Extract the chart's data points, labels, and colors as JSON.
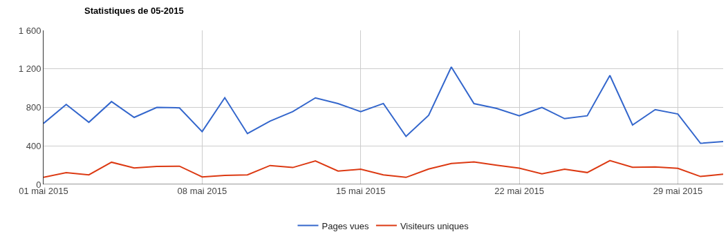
{
  "chart_data": {
    "type": "line",
    "title": "Statistiques de 05-2015",
    "x": [
      "2015-05-01",
      "2015-05-02",
      "2015-05-03",
      "2015-05-04",
      "2015-05-05",
      "2015-05-06",
      "2015-05-07",
      "2015-05-08",
      "2015-05-09",
      "2015-05-10",
      "2015-05-11",
      "2015-05-12",
      "2015-05-13",
      "2015-05-14",
      "2015-05-15",
      "2015-05-16",
      "2015-05-17",
      "2015-05-18",
      "2015-05-19",
      "2015-05-20",
      "2015-05-21",
      "2015-05-22",
      "2015-05-23",
      "2015-05-24",
      "2015-05-25",
      "2015-05-26",
      "2015-05-27",
      "2015-05-28",
      "2015-05-29",
      "2015-05-30",
      "2015-05-31"
    ],
    "series": [
      {
        "name": "Pages vues",
        "color": "#3366cc",
        "values": [
          634,
          830,
          645,
          860,
          696,
          800,
          795,
          548,
          900,
          528,
          657,
          756,
          899,
          839,
          756,
          840,
          498,
          718,
          1220,
          839,
          789,
          713,
          800,
          683,
          713,
          1132,
          617,
          777,
          731,
          427,
          444
        ]
      },
      {
        "name": "Visiteurs uniques",
        "color": "#dc3912",
        "values": [
          74,
          122,
          99,
          230,
          170,
          187,
          189,
          78,
          94,
          99,
          196,
          175,
          244,
          138,
          157,
          98,
          73,
          160,
          217,
          233,
          199,
          169,
          110,
          158,
          123,
          247,
          178,
          181,
          167,
          82,
          105
        ]
      }
    ],
    "xlim": [
      "2015-05-01",
      "2015-05-31"
    ],
    "xticks": [
      {
        "value": "2015-05-01",
        "label": "01 mai 2015"
      },
      {
        "value": "2015-05-08",
        "label": "08 mai 2015"
      },
      {
        "value": "2015-05-15",
        "label": "15 mai 2015"
      },
      {
        "value": "2015-05-22",
        "label": "22 mai 2015"
      },
      {
        "value": "2015-05-29",
        "label": "29 mai 2015"
      }
    ],
    "ylim": [
      0,
      1600
    ],
    "yticks": [
      0,
      400,
      800,
      {
        "value": 1200,
        "label": "1 200"
      },
      {
        "value": 1600,
        "label": "1 600"
      }
    ],
    "grid": true,
    "legend": "bottom",
    "marker": "none",
    "line_style": "solid"
  }
}
